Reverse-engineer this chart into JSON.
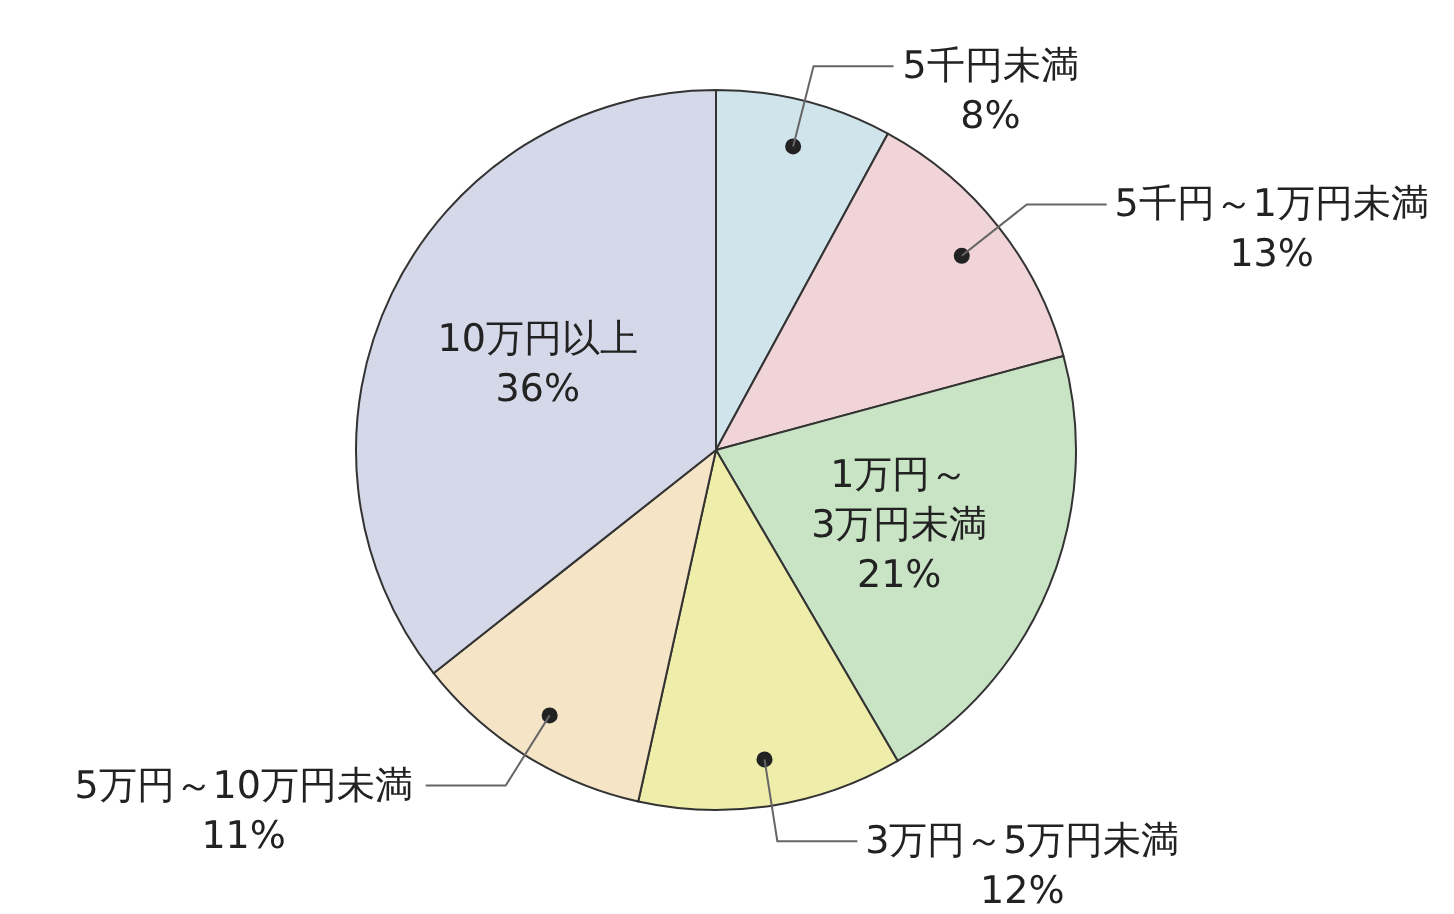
{
  "chart_data": {
    "type": "pie",
    "categories": [
      "5千円未満",
      "5千円～1万円未満",
      "1万円～3万円未満",
      "3万円～5万円未満",
      "5万円～10万円未満",
      "10万円以上"
    ],
    "values": [
      8,
      13,
      21,
      12,
      11,
      36
    ],
    "colors": [
      "#d0e4ec",
      "#f0d4d8",
      "#c9e4c5",
      "#eeeeaa",
      "#f6e4c6",
      "#d5d8e8"
    ],
    "value_labels": [
      "8%",
      "13%",
      "21%",
      "12%",
      "11%",
      "36%"
    ]
  }
}
